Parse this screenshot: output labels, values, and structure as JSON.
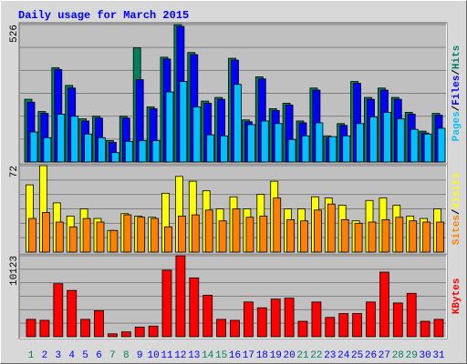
{
  "chart_data": [
    {
      "type": "bar",
      "title": "Daily usage for March 2015",
      "legend_separator": "/",
      "ylim": [
        0,
        526
      ],
      "yticks": [
        526
      ],
      "series": [
        {
          "name": "Hits",
          "color": "#00805c",
          "values": [
            240,
            193,
            361,
            293,
            165,
            175,
            82,
            175,
            437,
            211,
            401,
            526,
            419,
            233,
            247,
            397,
            161,
            326,
            204,
            225,
            157,
            283,
            100,
            147,
            308,
            247,
            283,
            247,
            190,
            118,
            186
          ]
        },
        {
          "name": "Files",
          "color": "#0000ff",
          "values": [
            229,
            186,
            354,
            283,
            157,
            168,
            75,
            168,
            315,
            204,
            394,
            519,
            411,
            225,
            240,
            390,
            154,
            318,
            197,
            218,
            150,
            275,
            93,
            140,
            301,
            240,
            275,
            240,
            183,
            111,
            179
          ]
        },
        {
          "name": "Pages",
          "color": "#00c0ff",
          "values": [
            115,
            93,
            183,
            175,
            107,
            93,
            36,
            79,
            82,
            82,
            268,
            308,
            211,
            104,
            100,
            297,
            143,
            157,
            147,
            86,
            100,
            150,
            97,
            100,
            147,
            172,
            190,
            165,
            125,
            107,
            129
          ]
        }
      ]
    },
    {
      "type": "bar",
      "ylim": [
        0,
        72
      ],
      "yticks": [
        72
      ],
      "series": [
        {
          "name": "Visits",
          "color": "#ffff00",
          "values": [
            56,
            72,
            41,
            30,
            36,
            28,
            18,
            32,
            30,
            29,
            49,
            63,
            59,
            51,
            36,
            46,
            36,
            48,
            59,
            36,
            36,
            46,
            45,
            39,
            26,
            43,
            45,
            39,
            30,
            28,
            36
          ]
        },
        {
          "name": "Sites",
          "color": "#ff8000",
          "values": [
            28,
            33,
            25,
            21,
            28,
            25,
            18,
            31,
            29,
            28,
            21,
            30,
            31,
            35,
            26,
            36,
            29,
            30,
            45,
            27,
            26,
            35,
            40,
            27,
            24,
            25,
            27,
            29,
            26,
            25,
            25
          ]
        }
      ]
    },
    {
      "type": "bar",
      "ylim": [
        0,
        10123
      ],
      "yticks": [
        10123
      ],
      "categories": [
        "1",
        "2",
        "3",
        "4",
        "5",
        "6",
        "7",
        "8",
        "9",
        "10",
        "11",
        "12",
        "13",
        "14",
        "15",
        "16",
        "17",
        "18",
        "19",
        "20",
        "21",
        "22",
        "23",
        "24",
        "25",
        "26",
        "27",
        "28",
        "29",
        "30",
        "31"
      ],
      "category_colors": [
        "#00805c",
        "#0000ff",
        "#0000ff",
        "#0000ff",
        "#0000ff",
        "#0000ff",
        "#00805c",
        "#00805c",
        "#0000ff",
        "#0000ff",
        "#0000ff",
        "#0000ff",
        "#0000ff",
        "#00805c",
        "#00805c",
        "#0000ff",
        "#0000ff",
        "#0000ff",
        "#0000ff",
        "#0000ff",
        "#00805c",
        "#00805c",
        "#0000ff",
        "#0000ff",
        "#0000ff",
        "#0000ff",
        "#0000ff",
        "#00805c",
        "#00805c",
        "#0000ff",
        "#0000ff"
      ],
      "series": [
        {
          "name": "KBytes",
          "color": "#ff0000",
          "values": [
            2169,
            2049,
            6628,
            5784,
            2169,
            3253,
            361,
            602,
            1205,
            1326,
            8315,
            10123,
            7351,
            5181,
            2169,
            2049,
            4338,
            3615,
            4700,
            4820,
            1928,
            4338,
            2410,
            2892,
            2892,
            4338,
            8074,
            4218,
            5422,
            1928,
            2169
          ]
        }
      ]
    }
  ]
}
